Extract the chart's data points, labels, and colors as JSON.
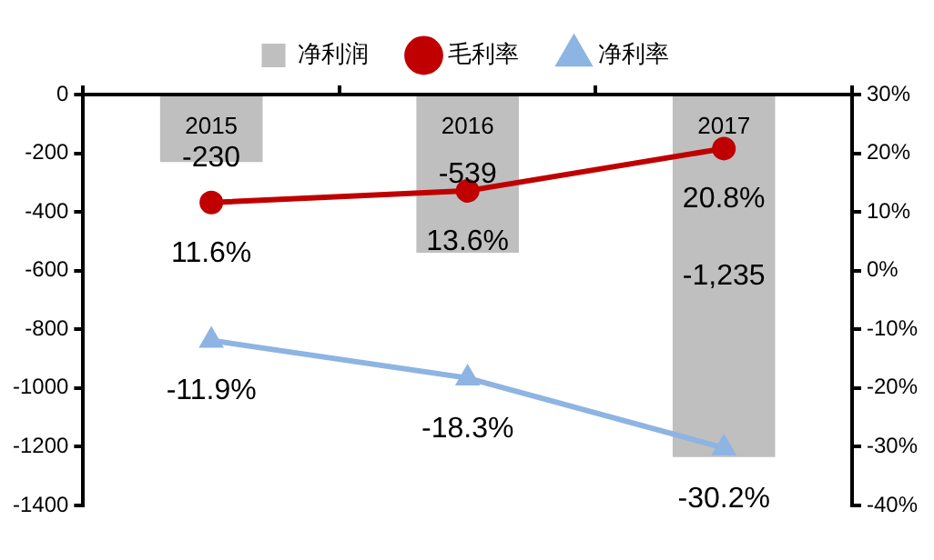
{
  "chart_data": {
    "type": "bar",
    "categories": [
      "2015",
      "2016",
      "2017"
    ],
    "series": [
      {
        "name": "净利润",
        "color": "#bfbfbf",
        "values": [
          -230,
          -539,
          -1235
        ],
        "value_labels": [
          "-230",
          "-539",
          "-1,235"
        ]
      },
      {
        "name": "毛利率",
        "type": "line",
        "axis": "y2",
        "color": "#c00000",
        "marker": "circle",
        "values": [
          11.6,
          13.6,
          20.8
        ],
        "value_labels": [
          "11.6%",
          "13.6%",
          "20.8%"
        ]
      },
      {
        "name": "净利率",
        "type": "line",
        "axis": "y2",
        "color": "#8db4e2",
        "marker": "triangle",
        "values": [
          -11.9,
          -18.3,
          -30.2
        ],
        "value_labels": [
          "-11.9%",
          "-18.3%",
          "-30.2%"
        ]
      }
    ],
    "ylim": [
      -1400,
      0
    ],
    "yticks": [
      -1400,
      -1200,
      -1000,
      -800,
      -600,
      -400,
      -200,
      0
    ],
    "y2lim": [
      -40,
      30
    ],
    "y2ticks": [
      {
        "value": -40,
        "label": "-40%"
      },
      {
        "value": -30,
        "label": "-30%"
      },
      {
        "value": -20,
        "label": "-20%"
      },
      {
        "value": -10,
        "label": "-10%"
      },
      {
        "value": 0,
        "label": "0%"
      },
      {
        "value": 10,
        "label": "10%"
      },
      {
        "value": 20,
        "label": "20%"
      },
      {
        "value": 30,
        "label": "30%"
      }
    ],
    "grid": false,
    "legend": "top",
    "line_style": "solid"
  }
}
